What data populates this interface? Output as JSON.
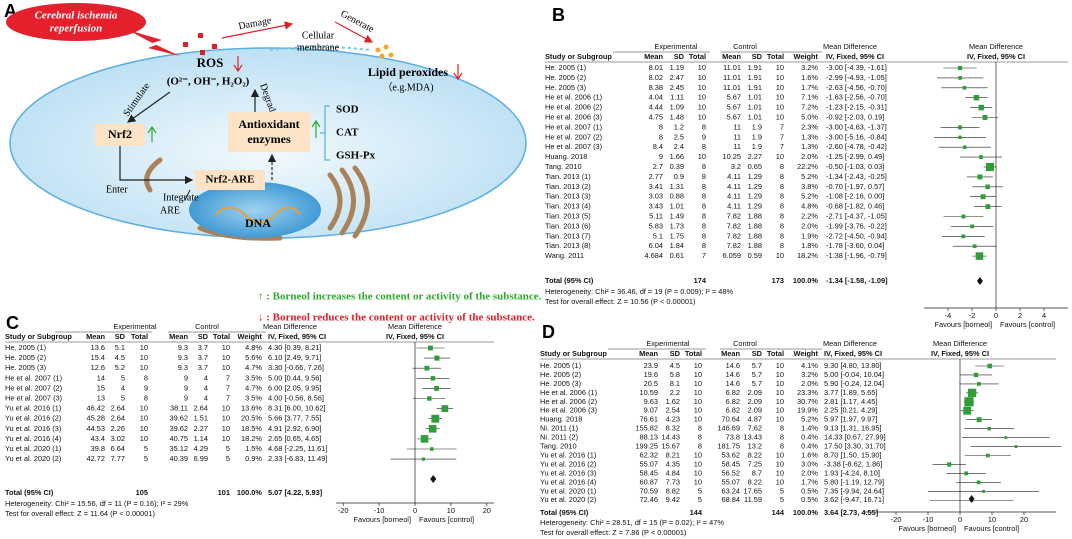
{
  "diagram": {
    "label": "A",
    "trigger": [
      "Cerebral ischemia",
      "reperfusion"
    ],
    "damage": "Damage",
    "membrane": [
      "Cellular",
      "membrane"
    ],
    "generate": "Generate",
    "ros": "ROS",
    "ros_species": "(O²⁻, OH⁻, H₂O₂)",
    "lipid": "Lipid peroxides",
    "lipid_example": "（e.g.MDA)",
    "stimulate": "Stimulate",
    "degrade": "Degrade",
    "nrf2": "Nrf2",
    "enzymes": [
      "Antioxidant",
      "enzymes"
    ],
    "enzyme_list": [
      "SOD",
      "CAT",
      "GSH-Px"
    ],
    "enter": "Enter",
    "nrf2_are": "Nrf2-ARE",
    "integrate": "Integrate",
    "are": "ARE",
    "dna": "DNA"
  },
  "notes": [
    "↑ : Borneol increases the content or activity of the substance.",
    "↓ : Borneol reduces the content or activity of the substance."
  ],
  "chart_data": [
    {
      "type": "forest",
      "panel": "B",
      "group_headers": [
        "Experimental",
        "Control",
        "Mean Difference",
        "Mean Difference"
      ],
      "col_headers": [
        "Study or Subgroup",
        "Mean",
        "SD",
        "Total",
        "Mean",
        "SD",
        "Total",
        "Weight",
        "IV, Fixed, 95% CI",
        "IV, Fixed, 95% CI"
      ],
      "rows": [
        [
          "He. 2005 (1)",
          "8.01",
          "1.19",
          "10",
          "11.01",
          "1.91",
          "10"
        ],
        [
          "He. 2005 (2)",
          "8.02",
          "2.47",
          "10",
          "11.01",
          "1.91",
          "10"
        ],
        [
          "He. 2005 (3)",
          "8.38",
          "2.45",
          "10",
          "11.01",
          "1.91",
          "10"
        ],
        [
          "He et al. 2006 (1)",
          "4.04",
          "1.11",
          "10",
          "5.67",
          "1.01",
          "10"
        ],
        [
          "He et al. 2006 (2)",
          "4.44",
          "1.09",
          "10",
          "5.67",
          "1.01",
          "10"
        ],
        [
          "He et al. 2006 (3)",
          "4.75",
          "1.48",
          "10",
          "5.67",
          "1.01",
          "10"
        ],
        [
          "He et al. 2007 (1)",
          "8",
          "1.2",
          "8",
          "11",
          "1.9",
          "7"
        ],
        [
          "He et al. 2007 (2)",
          "8",
          "2.5",
          "9",
          "11",
          "1.9",
          "7"
        ],
        [
          "He et al. 2007 (3)",
          "8.4",
          "2.4",
          "8",
          "11",
          "1.9",
          "7"
        ],
        [
          "Huang. 2018",
          "9",
          "1.66",
          "10",
          "10.25",
          "2.27",
          "10"
        ],
        [
          "Tang. 2010",
          "2.7",
          "0.39",
          "8",
          "3.2",
          "0.65",
          "8"
        ],
        [
          "Tian. 2013 (1)",
          "2.77",
          "0.9",
          "8",
          "4.11",
          "1.29",
          "8"
        ],
        [
          "Tian. 2013 (2)",
          "3.41",
          "1.31",
          "8",
          "4.11",
          "1.29",
          "8"
        ],
        [
          "Tian. 2013 (3)",
          "3.03",
          "0.88",
          "8",
          "4.11",
          "1.29",
          "8"
        ],
        [
          "Tian. 2013 (4)",
          "3.43",
          "1.01",
          "8",
          "4.11",
          "1.29",
          "8"
        ],
        [
          "Tian. 2013 (5)",
          "5.11",
          "1.49",
          "8",
          "7.82",
          "1.88",
          "8"
        ],
        [
          "Tian. 2013 (6)",
          "5.83",
          "1.73",
          "8",
          "7.82",
          "1.88",
          "8"
        ],
        [
          "Tian. 2013 (7)",
          "5.1",
          "1.75",
          "8",
          "7.82",
          "1.88",
          "8"
        ],
        [
          "Tian. 2013 (8)",
          "6.04",
          "1.84",
          "8",
          "7.82",
          "1.88",
          "8"
        ],
        [
          "Wang. 2011",
          "4.684",
          "0.61",
          "7",
          "6.059",
          "0.59",
          "10"
        ]
      ],
      "weights": [
        3.2,
        1.6,
        1.7,
        7.1,
        7.2,
        5.0,
        2.3,
        1.3,
        1.3,
        2.0,
        22.2,
        5.2,
        3.8,
        5.2,
        4.8,
        2.2,
        2.0,
        1.9,
        1.8,
        18.2
      ],
      "weight_labels": [
        "3.2%",
        "1.6%",
        "1.7%",
        "7.1%",
        "7.2%",
        "5.0%",
        "2.3%",
        "1.3%",
        "1.3%",
        "2.0%",
        "22.2%",
        "5.2%",
        "3.8%",
        "5.2%",
        "4.8%",
        "2.2%",
        "2.0%",
        "1.9%",
        "1.8%",
        "18.2%"
      ],
      "md": [
        -3.0,
        -2.99,
        -2.63,
        -1.63,
        -1.23,
        -0.92,
        -3.0,
        -3.0,
        -2.6,
        -1.25,
        -0.5,
        -1.34,
        -0.7,
        -1.08,
        -0.68,
        -2.71,
        -1.99,
        -2.72,
        -1.78,
        -1.38
      ],
      "ci": [
        [
          -4.39,
          -1.61
        ],
        [
          -4.93,
          -1.05
        ],
        [
          -4.56,
          -0.7
        ],
        [
          -2.56,
          -0.7
        ],
        [
          -2.15,
          -0.31
        ],
        [
          -2.03,
          0.19
        ],
        [
          -4.63,
          -1.37
        ],
        [
          -5.16,
          -0.84
        ],
        [
          -4.78,
          -0.42
        ],
        [
          -2.99,
          0.49
        ],
        [
          -1.03,
          0.03
        ],
        [
          -2.43,
          -0.25
        ],
        [
          -1.97,
          0.57
        ],
        [
          -2.16,
          0.0
        ],
        [
          -1.82,
          0.46
        ],
        [
          -4.37,
          -1.05
        ],
        [
          -3.76,
          -0.22
        ],
        [
          -4.5,
          -0.94
        ],
        [
          -3.6,
          0.04
        ],
        [
          -1.96,
          -0.79
        ]
      ],
      "md_labels": [
        "-3.00 [-4.39, -1.61]",
        "-2.99 [-4.93, -1.05]",
        "-2.63 [-4.56, -0.70]",
        "-1.63 [-2.56, -0.70]",
        "-1.23 [-2.15, -0.31]",
        "-0.92 [-2.03, 0.19]",
        "-3.00 [-4.63, -1.37]",
        "-3.00 [-5.16, -0.84]",
        "-2.60 [-4.78, -0.42]",
        "-1.25 [-2.99, 0.49]",
        "-0.50 [-1.03, 0.03]",
        "-1.34 [-2.43, -0.25]",
        "-0.70 [-1.97, 0.57]",
        "-1.08 [-2.16, 0.00]",
        "-0.68 [-1.82, 0.46]",
        "-2.71 [-4.37, -1.05]",
        "-1.99 [-3.76, -0.22]",
        "-2.72 [-4.50, -0.94]",
        "-1.78 [-3.60, 0.04]",
        "-1.38 [-1.96, -0.79]"
      ],
      "total": {
        "label": "Total (95% CI)",
        "exp_total": "174",
        "ctrl_total": "173",
        "weight_label": "100.0%",
        "md": -1.34,
        "ci": [
          -1.58,
          -1.09
        ],
        "md_label": "-1.34 [-1.58, -1.09]"
      },
      "heterogeneity": "Heterogeneity: Chi² = 36.46, df = 19 (P = 0.009); I² = 48%",
      "overall_effect": "Test for overall effect: Z = 10.56 (P < 0.00001)",
      "xlim": [
        -6,
        6
      ],
      "xticks": [
        -4,
        -2,
        0,
        2,
        4
      ],
      "favours": [
        "Favours [borneol]",
        "Favours [control]"
      ],
      "color": "#2f9e3a"
    },
    {
      "type": "forest",
      "panel": "C",
      "group_headers": [
        "Experimental",
        "Control",
        "Mean Difference",
        "Mean Difference"
      ],
      "col_headers": [
        "Study or Subgroup",
        "Mean",
        "SD",
        "Total",
        "Mean",
        "SD",
        "Total",
        "Weight",
        "IV, Fixed, 95% CI",
        "IV, Fixed, 95% CI"
      ],
      "rows": [
        [
          "He. 2005 (1)",
          "13.6",
          "5.1",
          "10",
          "9.3",
          "3.7",
          "10"
        ],
        [
          "He. 2005 (2)",
          "15.4",
          "4.5",
          "10",
          "9.3",
          "3.7",
          "10"
        ],
        [
          "He. 2005 (3)",
          "12.6",
          "5.2",
          "10",
          "9.3",
          "3.7",
          "10"
        ],
        [
          "He et al. 2007 (1)",
          "14",
          "5",
          "8",
          "9",
          "4",
          "7"
        ],
        [
          "He et al. 2007 (2)",
          "15",
          "4",
          "9",
          "9",
          "4",
          "7"
        ],
        [
          "He et al. 2007 (3)",
          "13",
          "5",
          "8",
          "9",
          "4",
          "7"
        ],
        [
          "Yu et al. 2016 (1)",
          "46.42",
          "2.64",
          "10",
          "38.11",
          "2.64",
          "10"
        ],
        [
          "Yu et al. 2016 (2)",
          "45.28",
          "2.64",
          "10",
          "39.62",
          "1.51",
          "10"
        ],
        [
          "Yu et al. 2016 (3)",
          "44.53",
          "2.26",
          "10",
          "39.62",
          "2.27",
          "10"
        ],
        [
          "Yu et al. 2016 (4)",
          "43.4",
          "3.02",
          "10",
          "40.75",
          "1.14",
          "10"
        ],
        [
          "Yu et al. 2020 (1)",
          "39.8",
          "6.64",
          "5",
          "35.12",
          "4.29",
          "5"
        ],
        [
          "Yu et al. 2020 (2)",
          "42.72",
          "7.77",
          "5",
          "40.39",
          "6.99",
          "5"
        ]
      ],
      "weights": [
        4.8,
        5.6,
        4.7,
        3.5,
        4.7,
        3.5,
        13.6,
        20.5,
        18.5,
        18.2,
        1.5,
        0.9
      ],
      "weight_labels": [
        "4.8%",
        "5.6%",
        "4.7%",
        "3.5%",
        "4.7%",
        "3.5%",
        "13.6%",
        "20.5%",
        "18.5%",
        "18.2%",
        "1.5%",
        "0.9%"
      ],
      "md": [
        4.3,
        6.1,
        3.3,
        5.0,
        6.0,
        4.0,
        8.31,
        5.66,
        4.91,
        2.65,
        4.68,
        2.33
      ],
      "ci": [
        [
          0.39,
          8.21
        ],
        [
          2.49,
          9.71
        ],
        [
          -0.66,
          7.26
        ],
        [
          0.44,
          9.56
        ],
        [
          2.05,
          9.95
        ],
        [
          -0.56,
          8.56
        ],
        [
          6.0,
          10.62
        ],
        [
          3.77,
          7.55
        ],
        [
          2.92,
          6.9
        ],
        [
          0.65,
          4.65
        ],
        [
          -2.25,
          11.61
        ],
        [
          -6.83,
          11.49
        ]
      ],
      "md_labels": [
        "4.30 [0.39, 8.21]",
        "6.10 [2.49, 9.71]",
        "3.30 [-0.66, 7.26]",
        "5.00 [0.44, 9.56]",
        "6.00 [2.05, 9.95]",
        "4.00 [-0.56, 8.56]",
        "8.31 [6.00, 10.62]",
        "5.66 [3.77, 7.55]",
        "4.91 [2.92, 6.90]",
        "2.65 [0.65, 4.65]",
        "4.68 [-2.25, 11.61]",
        "2.33 [-6.83, 11.49]"
      ],
      "total": {
        "label": "Total (95% CI)",
        "exp_total": "105",
        "ctrl_total": "101",
        "weight_label": "100.0%",
        "md": 5.07,
        "ci": [
          4.22,
          5.93
        ],
        "md_label": "5.07 [4.22, 5.93]"
      },
      "heterogeneity": "Heterogeneity: Chi² = 15.56, df = 11 (P = 0.16); I² = 29%",
      "overall_effect": "Test for overall effect: Z = 11.64 (P < 0.00001)",
      "xlim": [
        -22,
        22
      ],
      "xticks": [
        -20,
        -10,
        0,
        10,
        20
      ],
      "favours": [
        "Favours [borneol]",
        "Favours [control]"
      ],
      "color": "#2f9e3a"
    },
    {
      "type": "forest",
      "panel": "D",
      "group_headers": [
        "Experimental",
        "Control",
        "Mean Difference",
        "Mean Difference"
      ],
      "col_headers": [
        "Study or Subgroup",
        "Mean",
        "SD",
        "Total",
        "Mean",
        "SD",
        "Total",
        "Weight",
        "IV, Fixed, 95% CI",
        "IV, Fixed, 95% CI"
      ],
      "rows": [
        [
          "He. 2005 (1)",
          "23.9",
          "4.5",
          "10",
          "14.6",
          "5.7",
          "10"
        ],
        [
          "He. 2005 (2)",
          "19.6",
          "5.8",
          "10",
          "14.6",
          "5.7",
          "10"
        ],
        [
          "He. 2005 (3)",
          "20.5",
          "8.1",
          "10",
          "14.6",
          "5.7",
          "10"
        ],
        [
          "He et al. 2006 (1)",
          "10.59",
          "2.2",
          "10",
          "6.82",
          "2.09",
          "10"
        ],
        [
          "He et al. 2006 (2)",
          "9.63",
          "1.62",
          "10",
          "6.82",
          "2.09",
          "10"
        ],
        [
          "He et al. 2006 (3)",
          "9.07",
          "2.54",
          "10",
          "6.82",
          "2.09",
          "10"
        ],
        [
          "Huang. 2018",
          "76.61",
          "4.23",
          "10",
          "70.64",
          "4.87",
          "10"
        ],
        [
          "Ni. 2011 (1)",
          "155.82",
          "8.32",
          "8",
          "146.69",
          "7.62",
          "8"
        ],
        [
          "Ni. 2011 (2)",
          "88.13",
          "14.43",
          "8",
          "73.8",
          "13.43",
          "8"
        ],
        [
          "Tang. 2010",
          "199.25",
          "15.67",
          "8",
          "181.75",
          "13.2",
          "8"
        ],
        [
          "Yu et al. 2016 (1)",
          "62.32",
          "8.21",
          "10",
          "53.62",
          "8.22",
          "10"
        ],
        [
          "Yu et al. 2016 (2)",
          "55.07",
          "4.35",
          "10",
          "58.45",
          "7.25",
          "10"
        ],
        [
          "Yu et al. 2016 (3)",
          "58.45",
          "4.84",
          "10",
          "56.52",
          "8.7",
          "10"
        ],
        [
          "Yu et al. 2016 (4)",
          "60.87",
          "7.73",
          "10",
          "55.07",
          "8.22",
          "10"
        ],
        [
          "Yu et al. 2020 (1)",
          "70.59",
          "8.82",
          "5",
          "63.24",
          "17.65",
          "5"
        ],
        [
          "Yu et al. 2020 (2)",
          "72.46",
          "9.42",
          "5",
          "68.84",
          "11.59",
          "5"
        ]
      ],
      "weights": [
        4.1,
        3.2,
        2.0,
        23.3,
        30.7,
        19.9,
        5.2,
        1.4,
        0.4,
        0.4,
        1.6,
        3.0,
        2.0,
        1.7,
        0.5,
        0.5
      ],
      "weight_labels": [
        "4.1%",
        "3.2%",
        "2.0%",
        "23.3%",
        "30.7%",
        "19.9%",
        "5.2%",
        "1.4%",
        "0.4%",
        "0.4%",
        "1.6%",
        "3.0%",
        "2.0%",
        "1.7%",
        "0.5%",
        "0.5%"
      ],
      "md": [
        9.3,
        5.0,
        5.9,
        3.77,
        2.81,
        2.25,
        5.97,
        9.13,
        14.33,
        17.5,
        8.7,
        -3.38,
        1.93,
        5.8,
        7.35,
        3.62
      ],
      "ci": [
        [
          4.8,
          13.8
        ],
        [
          -0.04,
          10.04
        ],
        [
          -0.24,
          12.04
        ],
        [
          1.89,
          5.65
        ],
        [
          1.17,
          4.45
        ],
        [
          0.21,
          4.29
        ],
        [
          1.97,
          9.97
        ],
        [
          1.31,
          16.95
        ],
        [
          0.67,
          27.99
        ],
        [
          3.3,
          31.7
        ],
        [
          1.5,
          15.9
        ],
        [
          -8.62,
          1.86
        ],
        [
          -4.24,
          8.1
        ],
        [
          -1.19,
          12.79
        ],
        [
          -9.94,
          24.64
        ],
        [
          -9.47,
          16.71
        ]
      ],
      "md_labels": [
        "9.30 [4.80, 13.80]",
        "5.00 [-0.04, 10.04]",
        "5.90 [-0.24, 12.04]",
        "3.77 [1.89, 5.65]",
        "2.81 [1.17, 4.45]",
        "2.25 [0.21, 4.29]",
        "5.97 [1.97, 9.97]",
        "9.13 [1.31, 16.95]",
        "14.33 [0.67, 27.99]",
        "17.50 [3.30, 31.70]",
        "8.70 [1.50, 15.90]",
        "-3.38 [-8.62, 1.86]",
        "1.93 [-4.24, 8.10]",
        "5.80 [-1.19, 12.79]",
        "7.35 [-9.94, 24.64]",
        "3.62 [-9.47, 16.71]"
      ],
      "total": {
        "label": "Total (95% CI)",
        "exp_total": "144",
        "ctrl_total": "144",
        "weight_label": "100.0%",
        "md": 3.64,
        "ci": [
          2.73,
          4.55
        ],
        "md_label": "3.64 [2.73, 4.55]"
      },
      "heterogeneity": "Heterogeneity: Chi² = 28.51, df = 15 (P = 0.02); I² = 47%",
      "overall_effect": "Test for overall effect: Z = 7.86 (P < 0.00001)",
      "xlim": [
        -30,
        30
      ],
      "xticks": [
        -20,
        -10,
        0,
        10,
        20
      ],
      "favours": [
        "Favours [borneol]",
        "Favours [control]"
      ],
      "color": "#2f9e3a"
    }
  ]
}
